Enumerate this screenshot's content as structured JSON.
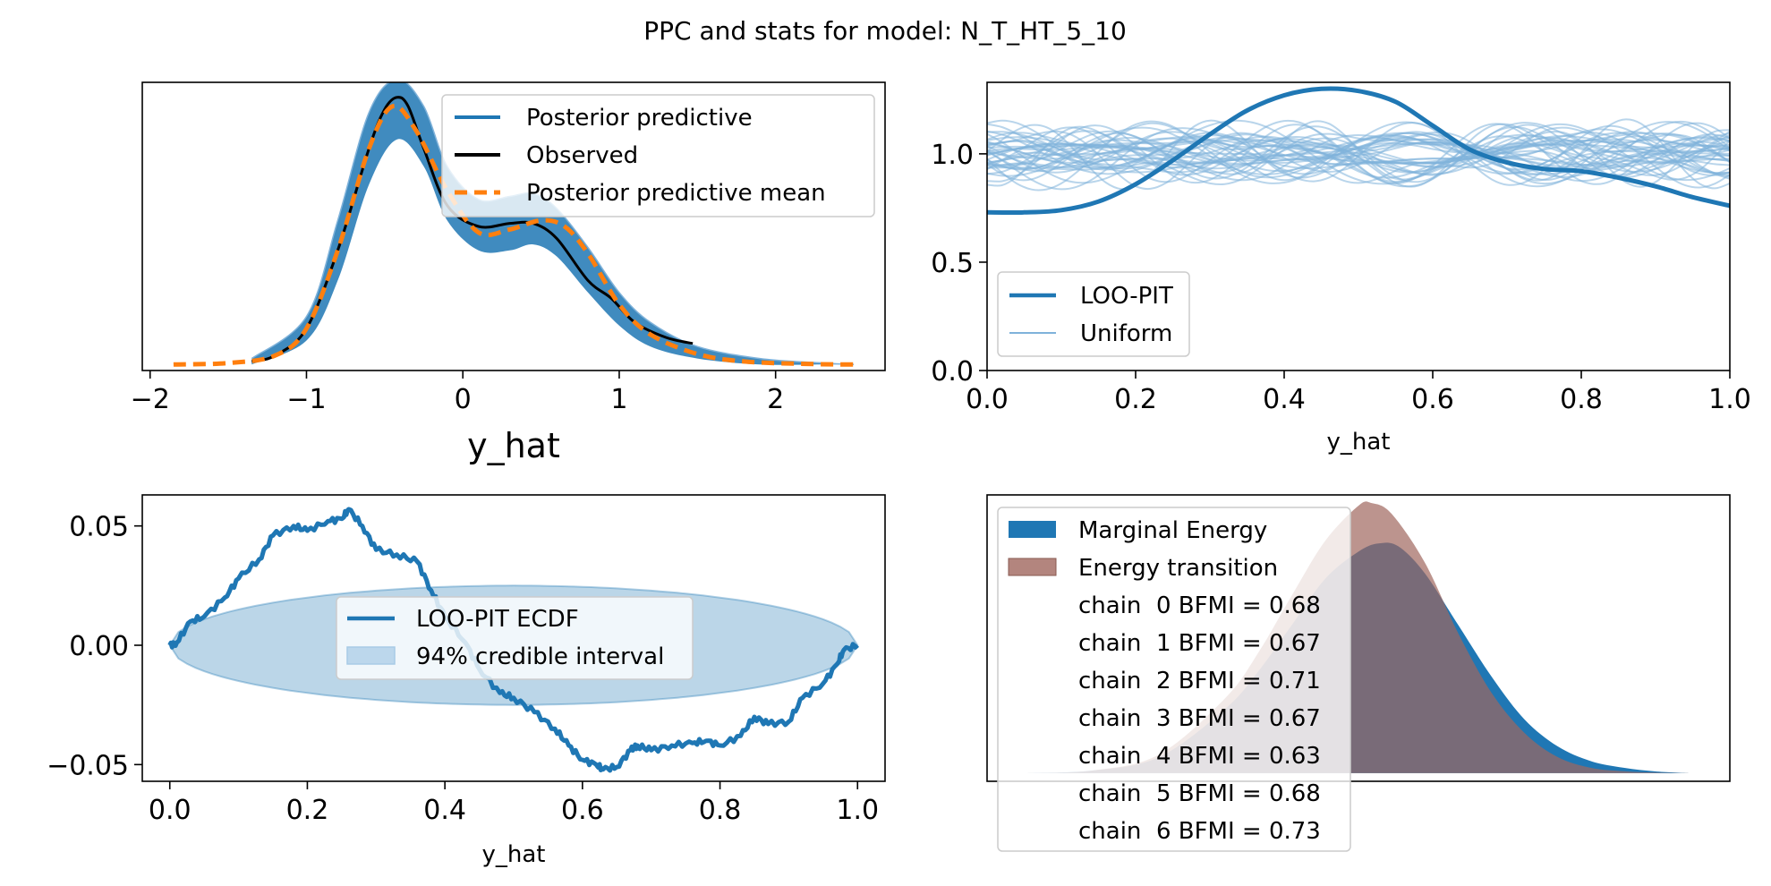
{
  "suptitle": "PPC and stats for model: N_T_HT_5_10",
  "colors": {
    "blue": "#1f77b4",
    "light_blue": "#7fb2da",
    "orange": "#ff7f0e",
    "black": "#000000",
    "energy_brown": "#a0675e",
    "overlap": "#6f5b5f",
    "band": "#bcd7ec"
  },
  "chart_data": [
    {
      "id": "ppc",
      "type": "line",
      "title": "",
      "xlabel": "y_hat",
      "ylabel": "",
      "xlim": [
        -2.05,
        2.7
      ],
      "ylim": [
        -0.02,
        0.94
      ],
      "x_ticks": [
        -2,
        -1,
        0,
        1,
        2
      ],
      "x_tick_labels": [
        "−2",
        "−1",
        "0",
        "1",
        "2"
      ],
      "y_ticks_shown": false,
      "legend": [
        "Posterior predictive",
        "Observed",
        "Posterior predictive mean"
      ],
      "legend_placement": "upper right",
      "observed": {
        "x": [
          -1.35,
          -1.2,
          -1.0,
          -0.8,
          -0.6,
          -0.5,
          -0.42,
          -0.35,
          -0.25,
          -0.1,
          0.1,
          0.3,
          0.45,
          0.6,
          0.8,
          0.95,
          1.1,
          1.3,
          1.47
        ],
        "y": [
          0.01,
          0.03,
          0.12,
          0.38,
          0.72,
          0.85,
          0.89,
          0.86,
          0.72,
          0.53,
          0.46,
          0.47,
          0.47,
          0.42,
          0.28,
          0.22,
          0.14,
          0.09,
          0.07
        ]
      },
      "pp_mean": {
        "x": [
          -1.85,
          -1.5,
          -1.2,
          -1.0,
          -0.8,
          -0.6,
          -0.45,
          -0.3,
          -0.1,
          0.1,
          0.3,
          0.5,
          0.65,
          0.8,
          1.0,
          1.2,
          1.5,
          1.8,
          2.2,
          2.5
        ],
        "y": [
          0.0,
          0.005,
          0.03,
          0.12,
          0.38,
          0.72,
          0.86,
          0.78,
          0.58,
          0.44,
          0.45,
          0.48,
          0.46,
          0.37,
          0.2,
          0.1,
          0.035,
          0.01,
          0.002,
          0.0
        ]
      },
      "pp_band_upper": {
        "x": [
          -1.35,
          -1.0,
          -0.8,
          -0.6,
          -0.42,
          -0.25,
          -0.1,
          0.1,
          0.3,
          0.45,
          0.6,
          0.8,
          1.0,
          1.2,
          1.5,
          1.9,
          2.3,
          2.5
        ],
        "y": [
          0.02,
          0.16,
          0.48,
          0.84,
          0.95,
          0.86,
          0.66,
          0.55,
          0.56,
          0.57,
          0.52,
          0.39,
          0.24,
          0.14,
          0.06,
          0.02,
          0.005,
          0.0
        ]
      },
      "pp_band_lower": {
        "x": [
          -1.35,
          -1.0,
          -0.8,
          -0.6,
          -0.42,
          -0.25,
          -0.1,
          0.1,
          0.3,
          0.45,
          0.6,
          0.8,
          1.0,
          1.2,
          1.5,
          1.9,
          2.3,
          2.5
        ],
        "y": [
          0.0,
          0.08,
          0.28,
          0.6,
          0.75,
          0.66,
          0.48,
          0.38,
          0.38,
          0.4,
          0.36,
          0.24,
          0.13,
          0.06,
          0.02,
          0.0,
          0.0,
          0.0
        ]
      }
    },
    {
      "id": "loo-pit",
      "type": "line",
      "title": "",
      "xlabel": "y_hat",
      "ylabel": "",
      "xlim": [
        0.0,
        1.0
      ],
      "ylim": [
        0.0,
        1.33
      ],
      "x_ticks": [
        0.0,
        0.2,
        0.4,
        0.6,
        0.8,
        1.0
      ],
      "x_tick_labels": [
        "0.0",
        "0.2",
        "0.4",
        "0.6",
        "0.8",
        "1.0"
      ],
      "y_ticks": [
        0.0,
        0.5,
        1.0
      ],
      "y_tick_labels": [
        "0.0",
        "0.5",
        "1.0"
      ],
      "legend": [
        "LOO-PIT",
        "Uniform"
      ],
      "legend_placement": "lower left",
      "series": [
        {
          "name": "LOO-PIT",
          "x": [
            0.0,
            0.05,
            0.1,
            0.15,
            0.2,
            0.25,
            0.3,
            0.35,
            0.4,
            0.45,
            0.5,
            0.55,
            0.6,
            0.65,
            0.7,
            0.75,
            0.8,
            0.85,
            0.9,
            0.95,
            1.0
          ],
          "y": [
            0.73,
            0.73,
            0.74,
            0.78,
            0.86,
            0.97,
            1.09,
            1.2,
            1.27,
            1.3,
            1.29,
            1.24,
            1.13,
            1.02,
            0.96,
            0.93,
            0.92,
            0.89,
            0.85,
            0.8,
            0.76
          ]
        },
        {
          "name": "Uniform",
          "x": [
            0.0,
            0.25,
            0.5,
            0.75,
            1.0
          ],
          "y": [
            1.0,
            1.0,
            1.0,
            1.0,
            1.0
          ]
        }
      ],
      "uniform_band": [
        0.8,
        1.2
      ]
    },
    {
      "id": "loo-pit-ecdf",
      "type": "line",
      "title": "",
      "xlabel": "y_hat",
      "ylabel": "",
      "xlim": [
        -0.04,
        1.04
      ],
      "ylim": [
        -0.057,
        0.063
      ],
      "x_ticks": [
        0.0,
        0.2,
        0.4,
        0.6,
        0.8,
        1.0
      ],
      "x_tick_labels": [
        "0.0",
        "0.2",
        "0.4",
        "0.6",
        "0.8",
        "1.0"
      ],
      "y_ticks": [
        -0.05,
        0.0,
        0.05
      ],
      "y_tick_labels": [
        "−0.05",
        "0.00",
        "0.05"
      ],
      "legend": [
        "LOO-PIT ECDF",
        "94% credible interval"
      ],
      "legend_placement": "center",
      "series": [
        {
          "name": "LOO-PIT ECDF",
          "x": [
            0.0,
            0.01,
            0.03,
            0.05,
            0.08,
            0.1,
            0.13,
            0.15,
            0.18,
            0.2,
            0.23,
            0.25,
            0.26,
            0.28,
            0.3,
            0.33,
            0.36,
            0.38,
            0.4,
            0.43,
            0.45,
            0.48,
            0.5,
            0.53,
            0.56,
            0.58,
            0.6,
            0.62,
            0.63,
            0.65,
            0.67,
            0.68,
            0.7,
            0.73,
            0.76,
            0.78,
            0.8,
            0.83,
            0.85,
            0.87,
            0.9,
            0.92,
            0.95,
            0.97,
            0.98,
            1.0
          ],
          "y": [
            0.0,
            0.001,
            0.01,
            0.012,
            0.02,
            0.028,
            0.036,
            0.046,
            0.05,
            0.048,
            0.052,
            0.053,
            0.057,
            0.05,
            0.04,
            0.038,
            0.035,
            0.023,
            0.012,
            0.001,
            -0.01,
            -0.02,
            -0.022,
            -0.028,
            -0.035,
            -0.042,
            -0.048,
            -0.05,
            -0.052,
            -0.051,
            -0.044,
            -0.042,
            -0.044,
            -0.042,
            -0.041,
            -0.04,
            -0.042,
            -0.038,
            -0.03,
            -0.033,
            -0.032,
            -0.022,
            -0.016,
            -0.008,
            -0.002,
            0.0
          ]
        }
      ],
      "interval_halfwidth_max": 0.025
    },
    {
      "id": "energy",
      "type": "area",
      "title": "",
      "xlabel": "",
      "ylabel": "",
      "x_ticks_shown": false,
      "y_ticks_shown": false,
      "xlim": [
        -0.06,
        1.06
      ],
      "ylim": [
        -0.03,
        1.03
      ],
      "legend": [
        "Marginal Energy",
        "Energy transition",
        "chain  0 BFMI = 0.68",
        "chain  1 BFMI = 0.67",
        "chain  2 BFMI = 0.71",
        "chain  3 BFMI = 0.67",
        "chain  4 BFMI = 0.63",
        "chain  5 BFMI = 0.68",
        "chain  6 BFMI = 0.73"
      ],
      "legend_placement": "upper left",
      "series": [
        {
          "name": "Marginal Energy",
          "x": [
            0.0,
            0.1,
            0.2,
            0.3,
            0.35,
            0.4,
            0.45,
            0.5,
            0.53,
            0.56,
            0.6,
            0.65,
            0.7,
            0.75,
            0.8,
            0.85,
            0.9,
            0.95,
            1.0
          ],
          "y": [
            0.0,
            0.01,
            0.06,
            0.24,
            0.38,
            0.55,
            0.72,
            0.82,
            0.85,
            0.84,
            0.74,
            0.55,
            0.36,
            0.2,
            0.1,
            0.045,
            0.02,
            0.006,
            0.0
          ]
        },
        {
          "name": "Energy transition",
          "x": [
            0.0,
            0.1,
            0.2,
            0.3,
            0.35,
            0.4,
            0.45,
            0.5,
            0.52,
            0.55,
            0.6,
            0.65,
            0.7,
            0.75,
            0.8,
            0.85,
            0.9,
            0.95,
            1.0
          ],
          "y": [
            0.0,
            0.01,
            0.07,
            0.28,
            0.45,
            0.66,
            0.86,
            0.99,
            1.0,
            0.96,
            0.78,
            0.52,
            0.3,
            0.15,
            0.06,
            0.02,
            0.007,
            0.002,
            0.0
          ]
        }
      ],
      "bfmi": [
        {
          "chain": 0,
          "value": 0.68
        },
        {
          "chain": 1,
          "value": 0.67
        },
        {
          "chain": 2,
          "value": 0.71
        },
        {
          "chain": 3,
          "value": 0.67
        },
        {
          "chain": 4,
          "value": 0.63
        },
        {
          "chain": 5,
          "value": 0.68
        },
        {
          "chain": 6,
          "value": 0.73
        }
      ]
    }
  ]
}
